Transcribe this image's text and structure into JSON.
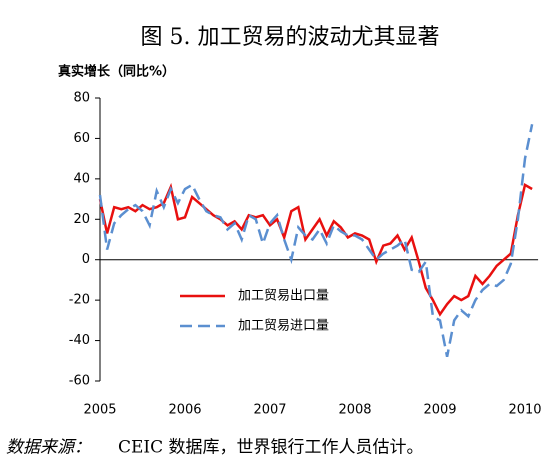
{
  "chart_data": {
    "type": "line",
    "title": "图 5. 加工贸易的波动尤其显著",
    "y_label": "真实增长（同比%）",
    "source_label": "数据来源：",
    "source_text": "CEIC 数据库，世界银行工作人员估计。",
    "categories": [
      "2005",
      null,
      null,
      null,
      null,
      null,
      null,
      null,
      null,
      null,
      null,
      null,
      "2006",
      null,
      null,
      null,
      null,
      null,
      null,
      null,
      null,
      null,
      null,
      null,
      "2007",
      null,
      null,
      null,
      null,
      null,
      null,
      null,
      null,
      null,
      null,
      null,
      "2008",
      null,
      null,
      null,
      null,
      null,
      null,
      null,
      null,
      null,
      null,
      null,
      "2009",
      null,
      null,
      null,
      null,
      null,
      null,
      null,
      null,
      null,
      null,
      null,
      "2010",
      null
    ],
    "series": [
      {
        "name": "加工贸易出口量",
        "color": "#e8100f",
        "line_style": "solid",
        "values": [
          30,
          13,
          26,
          25,
          26,
          24,
          27,
          25,
          26,
          28,
          36,
          20,
          21,
          31,
          28,
          25,
          22,
          20,
          17,
          19,
          15,
          22,
          21,
          22,
          17,
          20,
          11,
          24,
          26,
          10,
          15,
          20,
          12,
          19,
          16,
          11,
          13,
          12,
          10,
          -1,
          7,
          8,
          12,
          5,
          11,
          -1,
          -14,
          -20,
          -27,
          -22,
          -18,
          -20,
          -18,
          -8,
          -12,
          -8,
          -3,
          0,
          3,
          22,
          37,
          35
        ]
      },
      {
        "name": "加工贸易进口量",
        "color": "#5b8fd0",
        "line_style": "dashed",
        "values": [
          32,
          5,
          18,
          22,
          25,
          27,
          24,
          17,
          34,
          26,
          35,
          28,
          35,
          37,
          30,
          24,
          22,
          21,
          15,
          18,
          10,
          22,
          20,
          8,
          18,
          22,
          10,
          0,
          16,
          12,
          10,
          15,
          8,
          17,
          14,
          12,
          12,
          10,
          5,
          0,
          3,
          5,
          7,
          10,
          -5,
          -6,
          -1,
          -28,
          -30,
          -48,
          -30,
          -25,
          -28,
          -20,
          -15,
          -12,
          -13,
          -10,
          -2,
          20,
          50,
          67
        ]
      }
    ],
    "ylim": [
      -60,
      80
    ],
    "yticks": [
      -60,
      -40,
      -20,
      0,
      20,
      40,
      60,
      80
    ],
    "grid": false,
    "legend": "lower-left"
  }
}
